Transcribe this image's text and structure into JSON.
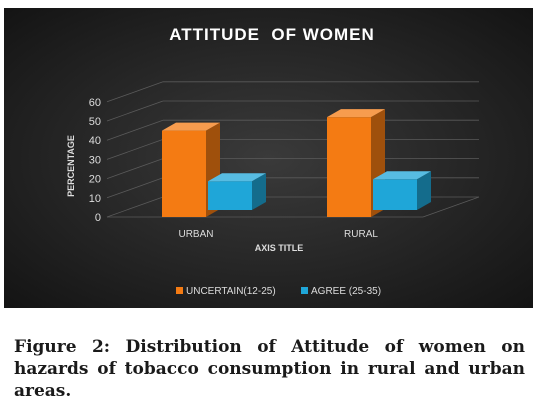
{
  "chart_data": {
    "type": "bar",
    "title": "ATTITUDE  OF WOMEN",
    "categories": [
      "URBAN",
      "RURAL"
    ],
    "series": [
      {
        "name": "UNCERTAIN(12-25)",
        "values": [
          45,
          52
        ],
        "color": "#f47b13"
      },
      {
        "name": "AGREE (25-35)",
        "values": [
          15,
          16
        ],
        "color": "#1fa6d8"
      }
    ],
    "xlabel": "AXIS TITLE",
    "ylabel": "PERCENTAGE",
    "ylim": [
      0,
      60
    ],
    "yticks": [
      "0",
      "10",
      "20",
      "30",
      "40",
      "50",
      "60"
    ],
    "grid": true,
    "legend_position": "bottom",
    "background_color": "#1f1f1f"
  },
  "caption": "Figure 2: Distribution of Attitude of women on hazards of tobacco consumption in rural and urban areas."
}
